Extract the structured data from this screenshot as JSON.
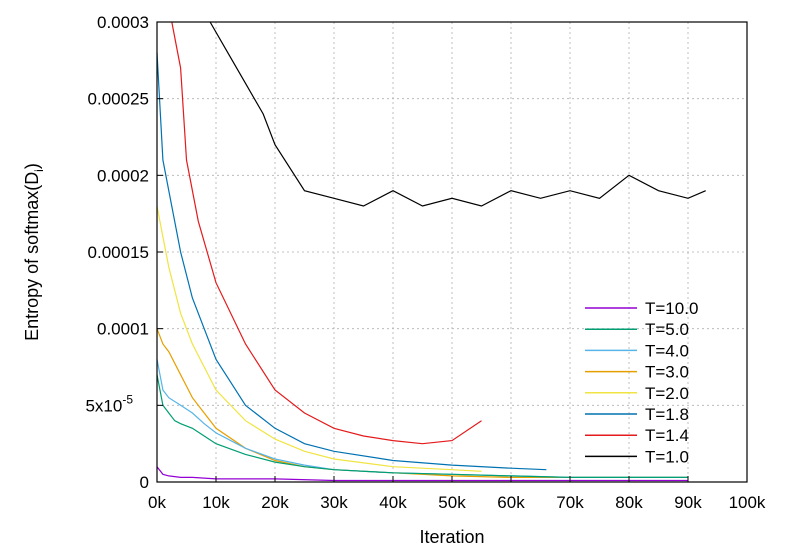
{
  "chart_data": {
    "type": "line",
    "xlabel": "Iteration",
    "ylabel": "Entropy of softmax(D",
    "ylabel_subscript": "i",
    "ylabel_close": ")",
    "xlim": [
      0,
      100000
    ],
    "ylim": [
      0,
      0.0003
    ],
    "grid": true,
    "legend_position": "bottom-right",
    "x_ticks": [
      0,
      10000,
      20000,
      30000,
      40000,
      50000,
      60000,
      70000,
      80000,
      90000,
      100000
    ],
    "x_tick_labels": [
      "0k",
      "10k",
      "20k",
      "30k",
      "40k",
      "50k",
      "60k",
      "70k",
      "80k",
      "90k",
      "100k"
    ],
    "y_ticks": [
      0,
      5e-05,
      0.0001,
      0.00015,
      0.0002,
      0.00025,
      0.0003
    ],
    "y_tick_labels": [
      "0",
      "5x10",
      "0.0001",
      "0.00015",
      "0.0002",
      "0.00025",
      "0.0003"
    ],
    "y_tick_sup": [
      "",
      "-5",
      "",
      "",
      "",
      "",
      ""
    ],
    "series": [
      {
        "name": "T=10.0",
        "color": "#9400d3",
        "x": [
          0,
          1000,
          2000,
          4000,
          6000,
          10000,
          20000,
          30000,
          40000,
          50000,
          60000,
          70000,
          80000,
          90000
        ],
        "y": [
          1e-05,
          5e-06,
          4e-06,
          3e-06,
          3e-06,
          2e-06,
          2e-06,
          1e-06,
          1e-06,
          1e-06,
          1e-06,
          1e-06,
          1e-06,
          1e-06
        ]
      },
      {
        "name": "T=5.0",
        "color": "#009e73",
        "x": [
          0,
          1000,
          2000,
          3000,
          4000,
          6000,
          8000,
          10000,
          15000,
          20000,
          25000,
          30000,
          40000,
          50000,
          60000,
          70000,
          80000,
          90000
        ],
        "y": [
          7e-05,
          5e-05,
          4.5e-05,
          4e-05,
          3.8e-05,
          3.5e-05,
          3e-05,
          2.5e-05,
          1.8e-05,
          1.3e-05,
          1e-05,
          8e-06,
          6e-06,
          5e-06,
          4e-06,
          3e-06,
          3e-06,
          3e-06
        ]
      },
      {
        "name": "T=4.0",
        "color": "#56b4e9",
        "x": [
          0,
          1000,
          2000,
          4000,
          6000,
          8000,
          10000,
          15000,
          20000,
          25000,
          30000,
          40000,
          50000,
          60000,
          70000,
          80000,
          90000
        ],
        "y": [
          8e-05,
          6e-05,
          5.5e-05,
          5e-05,
          4.5e-05,
          3.8e-05,
          3.2e-05,
          2.2e-05,
          1.5e-05,
          1.1e-05,
          8e-06,
          6e-06,
          5e-06,
          4e-06,
          3e-06,
          3e-06,
          3e-06
        ]
      },
      {
        "name": "T=3.0",
        "color": "#e69f00",
        "x": [
          0,
          1000,
          2000,
          4000,
          6000,
          8000,
          10000,
          15000,
          20000,
          25000,
          30000,
          40000,
          50000,
          60000,
          70000,
          80000,
          90000
        ],
        "y": [
          0.0001,
          9e-05,
          8.5e-05,
          7e-05,
          5.5e-05,
          4.5e-05,
          3.5e-05,
          2.2e-05,
          1.4e-05,
          1e-05,
          8e-06,
          6e-06,
          4e-06,
          3e-06,
          3e-06,
          3e-06,
          3e-06
        ]
      },
      {
        "name": "T=2.0",
        "color": "#f0e442",
        "x": [
          0,
          1000,
          2000,
          4000,
          6000,
          8000,
          10000,
          15000,
          20000,
          25000,
          30000,
          40000,
          50000,
          55000
        ],
        "y": [
          0.00018,
          0.00016,
          0.00014,
          0.00011,
          9e-05,
          7.5e-05,
          6e-05,
          4e-05,
          2.8e-05,
          2e-05,
          1.5e-05,
          1e-05,
          8e-06,
          7e-06
        ]
      },
      {
        "name": "T=1.8",
        "color": "#0072b2",
        "x": [
          0,
          1000,
          2000,
          4000,
          6000,
          8000,
          10000,
          15000,
          20000,
          25000,
          30000,
          40000,
          50000,
          60000,
          66000
        ],
        "y": [
          0.00028,
          0.00021,
          0.00019,
          0.00015,
          0.00012,
          0.0001,
          8e-05,
          5e-05,
          3.5e-05,
          2.5e-05,
          2e-05,
          1.4e-05,
          1.1e-05,
          9e-06,
          8e-06
        ]
      },
      {
        "name": "T=1.4",
        "color": "#e41a1c",
        "x": [
          2500,
          4000,
          5000,
          7000,
          10000,
          15000,
          20000,
          25000,
          30000,
          35000,
          40000,
          45000,
          50000,
          55000
        ],
        "y": [
          0.0003,
          0.00027,
          0.00021,
          0.00017,
          0.00013,
          9e-05,
          6e-05,
          4.5e-05,
          3.5e-05,
          3e-05,
          2.7e-05,
          2.5e-05,
          2.7e-05,
          4e-05
        ]
      },
      {
        "name": "T=1.0",
        "color": "#000000",
        "x": [
          9000,
          12000,
          15000,
          18000,
          20000,
          25000,
          30000,
          35000,
          40000,
          45000,
          50000,
          55000,
          60000,
          65000,
          70000,
          75000,
          80000,
          85000,
          90000,
          93000
        ],
        "y": [
          0.0003,
          0.00028,
          0.00026,
          0.00024,
          0.00022,
          0.00019,
          0.000185,
          0.00018,
          0.00019,
          0.00018,
          0.000185,
          0.00018,
          0.00019,
          0.000185,
          0.00019,
          0.000185,
          0.0002,
          0.00019,
          0.000185,
          0.00019
        ]
      }
    ]
  }
}
